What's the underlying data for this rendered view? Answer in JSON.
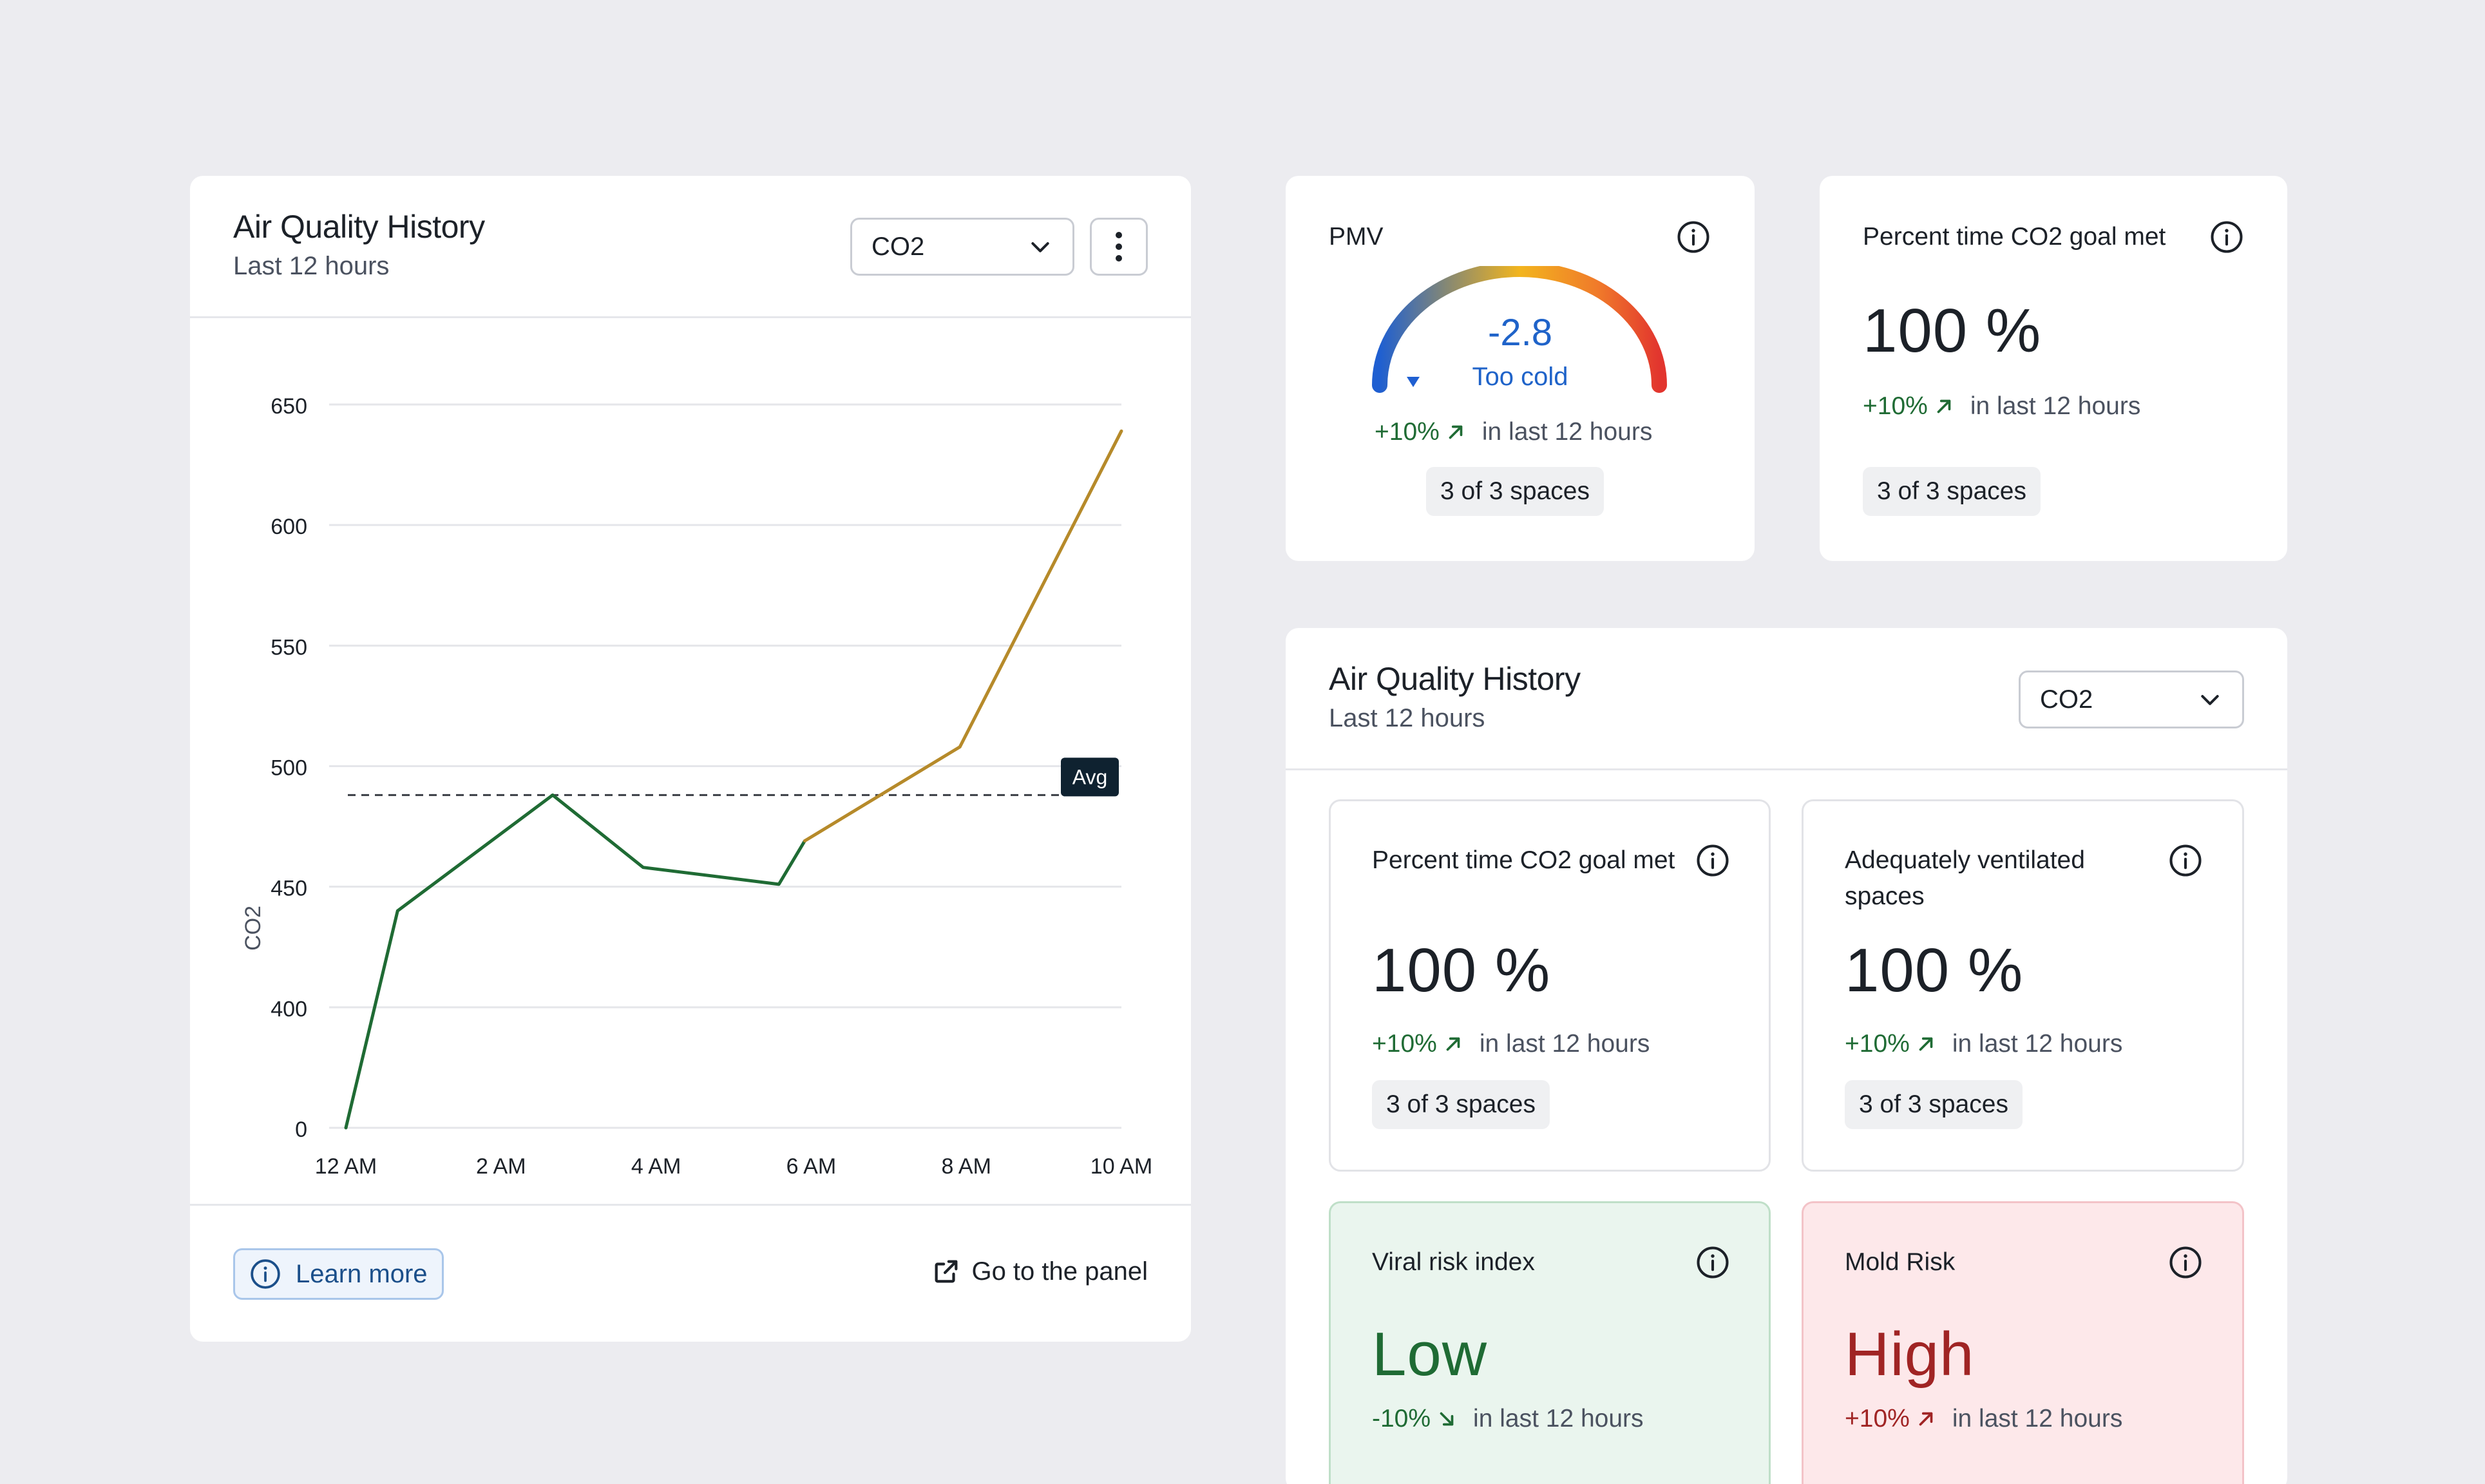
{
  "colors": {
    "background": "#ececf0",
    "card": "#ffffff",
    "positive": "#1f6b34",
    "negative": "#a02424",
    "chart_green": "#1f6b34",
    "chart_gold": "#b68a2a",
    "pmv_value": "#1f63c9",
    "viral_bg": "#eaf5ee",
    "mold_bg": "#fde8ea"
  },
  "history_card": {
    "title": "Air Quality History",
    "subtitle": "Last 12 hours",
    "select_value": "CO2",
    "select_icon": "chevron-down-icon",
    "menu_icon": "more-vertical-icon",
    "learn_more": "Learn more",
    "go_to_panel": "Go to the panel"
  },
  "chart_data": {
    "type": "line",
    "ylabel": "CO2",
    "xlabel": "",
    "y_tick_labels": [
      "0",
      "400",
      "450",
      "500",
      "550",
      "600",
      "650"
    ],
    "x_tick_labels": [
      "12 AM",
      "2 AM",
      "4 AM",
      "6 AM",
      "8 AM",
      "10 AM"
    ],
    "average_label": "Avg",
    "average_value": 488,
    "series": [
      {
        "color": "#1f6b34",
        "points": [
          {
            "x": "12 AM",
            "y": 0
          },
          {
            "x": "12:40 AM",
            "y": 440
          },
          {
            "x": "2:40 AM",
            "y": 488
          },
          {
            "x": "3:50 AM",
            "y": 458
          },
          {
            "x": "5:35 AM",
            "y": 451
          },
          {
            "x": "5:55 AM",
            "y": 469
          }
        ]
      },
      {
        "color": "#b68a2a",
        "points": [
          {
            "x": "5:55 AM",
            "y": 469
          },
          {
            "x": "7:55 AM",
            "y": 508
          },
          {
            "x": "10 AM",
            "y": 639
          }
        ]
      }
    ]
  },
  "pmv_card": {
    "title": "PMV",
    "value": "-2.8",
    "status": "Too cold",
    "gauge_level": -2.8,
    "trend_pct": "+10%",
    "trend_period": "in last 12 hours",
    "spaces": "3 of 3 spaces"
  },
  "co2_goal_card": {
    "title": "Percent time CO2 goal met",
    "value": "100 %",
    "trend_pct": "+10%",
    "trend_period": "in last 12 hours",
    "spaces": "3 of 3 spaces"
  },
  "history_panel": {
    "title": "Air Quality History",
    "subtitle": "Last 12 hours",
    "select_value": "CO2",
    "metrics": [
      {
        "title": "Percent time CO2 goal met",
        "value": "100 %",
        "trend_pct": "+10%",
        "trend_period": "in last 12 hours",
        "spaces": "3 of 3 spaces"
      },
      {
        "title": "Adequately ventilated spaces",
        "value": "100 %",
        "trend_pct": "+10%",
        "trend_period": "in last 12 hours",
        "spaces": "3 of 3 spaces"
      }
    ],
    "viral": {
      "title": "Viral risk index",
      "value": "Low",
      "trend_pct": "-10%",
      "trend_period": "in last 12 hours"
    },
    "mold": {
      "title": "Mold Risk",
      "value": "High",
      "trend_pct": "+10%",
      "trend_period": "in last 12 hours"
    }
  }
}
